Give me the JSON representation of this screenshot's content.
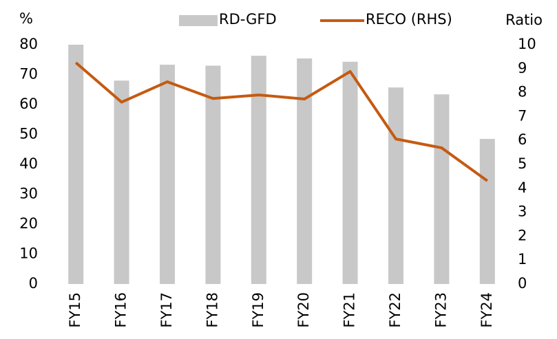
{
  "chart_data": {
    "type": "bar-line",
    "y_label": "%",
    "y2_label": "Ratio",
    "categories": [
      "FY15",
      "FY16",
      "FY17",
      "FY18",
      "FY19",
      "FY20",
      "FY21",
      "FY22",
      "FY23",
      "FY24"
    ],
    "series": [
      {
        "name": "RD-GFD",
        "type": "bar",
        "color": "#c8c8c8",
        "values": [
          80,
          68,
          73.3,
          73,
          76.3,
          75.4,
          74.3,
          65.7,
          63.4,
          48.5
        ]
      },
      {
        "name": "RECO (RHS)",
        "type": "line",
        "axis": "y2",
        "color": "#c55a11",
        "values": [
          9.25,
          7.6,
          8.45,
          7.75,
          7.9,
          7.73,
          8.88,
          6.06,
          5.69,
          4.31
        ]
      }
    ],
    "ylim": [
      0,
      80
    ],
    "yticks": [
      0,
      10,
      20,
      30,
      40,
      50,
      60,
      70,
      80
    ],
    "y2lim": [
      0,
      10
    ],
    "y2ticks": [
      0,
      1,
      2,
      3,
      4,
      5,
      6,
      7,
      8,
      9,
      10
    ],
    "legend": "top"
  }
}
